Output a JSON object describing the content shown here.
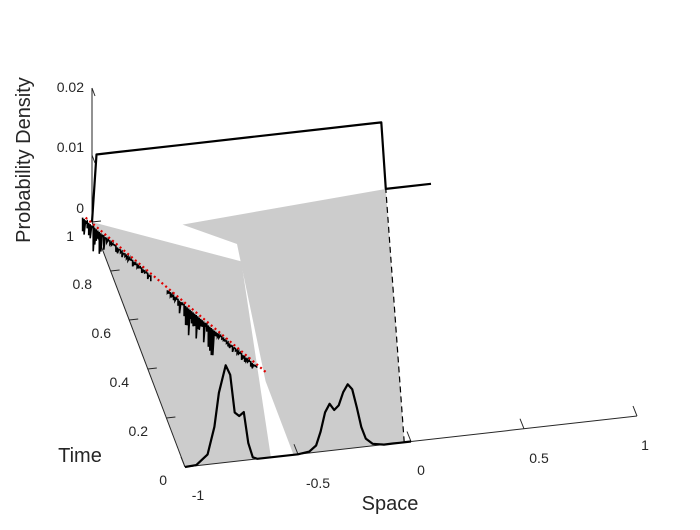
{
  "chart_data": {
    "type": "line",
    "view": "3d",
    "xlabel": "Space",
    "ylabel": "Time",
    "zlabel": "Probability Density",
    "xlim": [
      -1,
      1
    ],
    "ylim": [
      0,
      1
    ],
    "zlim": [
      0,
      0.02
    ],
    "xticks": [
      "-1",
      "-0.5",
      "0",
      "0.5",
      "1"
    ],
    "yticks": [
      "0",
      "0.2",
      "0.4",
      "0.6",
      "0.8",
      "1"
    ],
    "zticks": [
      "0",
      "0.01",
      "0.02"
    ],
    "grid": false,
    "series": [
      {
        "role": "initial density (time 0)",
        "color": "#000000",
        "x": [
          -1.0,
          -0.95,
          -0.9,
          -0.87,
          -0.85,
          -0.82,
          -0.8,
          -0.78,
          -0.76,
          -0.74,
          -0.72,
          -0.7,
          -0.68,
          -0.6,
          -0.5,
          -0.45,
          -0.42,
          -0.4,
          -0.38,
          -0.36,
          -0.34,
          -0.32,
          -0.3,
          -0.28,
          -0.26,
          -0.24,
          -0.22,
          -0.2,
          -0.17,
          -0.12,
          -0.08,
          -0.05,
          -0.02,
          0.0
        ],
        "t": [
          0,
          0,
          0,
          0,
          0,
          0,
          0,
          0,
          0,
          0,
          0,
          0,
          0,
          0,
          0,
          0,
          0,
          0,
          0,
          0,
          0,
          0,
          0,
          0,
          0,
          0,
          0,
          0,
          0,
          0,
          0,
          0,
          0,
          0
        ],
        "density": [
          0.0,
          0.0001,
          0.0015,
          0.0055,
          0.0105,
          0.0145,
          0.013,
          0.0073,
          0.0067,
          0.0072,
          0.0025,
          0.0003,
          0.0,
          0.0,
          0.0,
          0.0002,
          0.001,
          0.003,
          0.0058,
          0.007,
          0.006,
          0.0066,
          0.0085,
          0.0096,
          0.0088,
          0.006,
          0.003,
          0.0012,
          0.0003,
          0.0,
          0.0,
          0.0,
          0.0,
          0.0
        ]
      },
      {
        "role": "final density (time 1)",
        "color": "#000000",
        "x": [
          -1.0,
          -0.98,
          -0.9,
          -0.6,
          -0.3,
          0.0,
          0.2,
          0.28,
          0.3,
          0.5
        ],
        "t": [
          1,
          1,
          1,
          1,
          1,
          1,
          1,
          1,
          1,
          1
        ],
        "density": [
          0.0,
          0.01,
          0.01,
          0.01,
          0.01,
          0.01,
          0.01,
          0.01,
          0.0,
          0.0
        ]
      },
      {
        "role": "concentration path (red dotted)",
        "color": "#e00000",
        "x": [
          -1.02,
          -0.5
        ],
        "t": [
          1.02,
          0.33
        ],
        "density": [
          0.001,
          0.0
        ]
      }
    ]
  }
}
